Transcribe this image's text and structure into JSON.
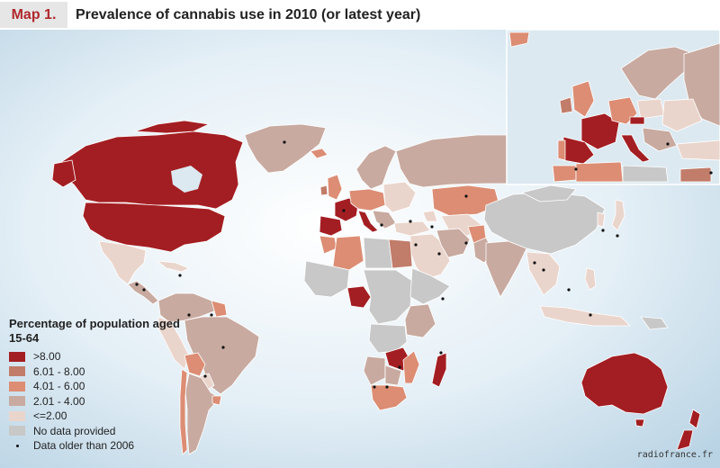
{
  "header": {
    "map_label": "Map 1.",
    "title": "Prevalence of cannabis use in 2010 (or latest year)"
  },
  "colors": {
    "gt8": "#a31e22",
    "6to8": "#c17c6a",
    "4to6": "#dc8d74",
    "2to4": "#c8aaa0",
    "le2": "#ead5cc",
    "nodata": "#c8c8c8",
    "ocean": "#dce9f1",
    "dot": "#111111"
  },
  "legend": {
    "title": "Percentage of population aged 15-64",
    "items": [
      {
        "key": "gt8",
        "label": ">8.00"
      },
      {
        "key": "6to8",
        "label": "6.01 - 8.00"
      },
      {
        "key": "4to6",
        "label": "4.01 - 6.00"
      },
      {
        "key": "2to4",
        "label": "2.01 - 4.00"
      },
      {
        "key": "le2",
        "label": "<=2.00"
      },
      {
        "key": "nodata",
        "label": "No data provided"
      }
    ],
    "older_label": "Data older than 2006"
  },
  "watermark": "radiofrance.fr"
}
